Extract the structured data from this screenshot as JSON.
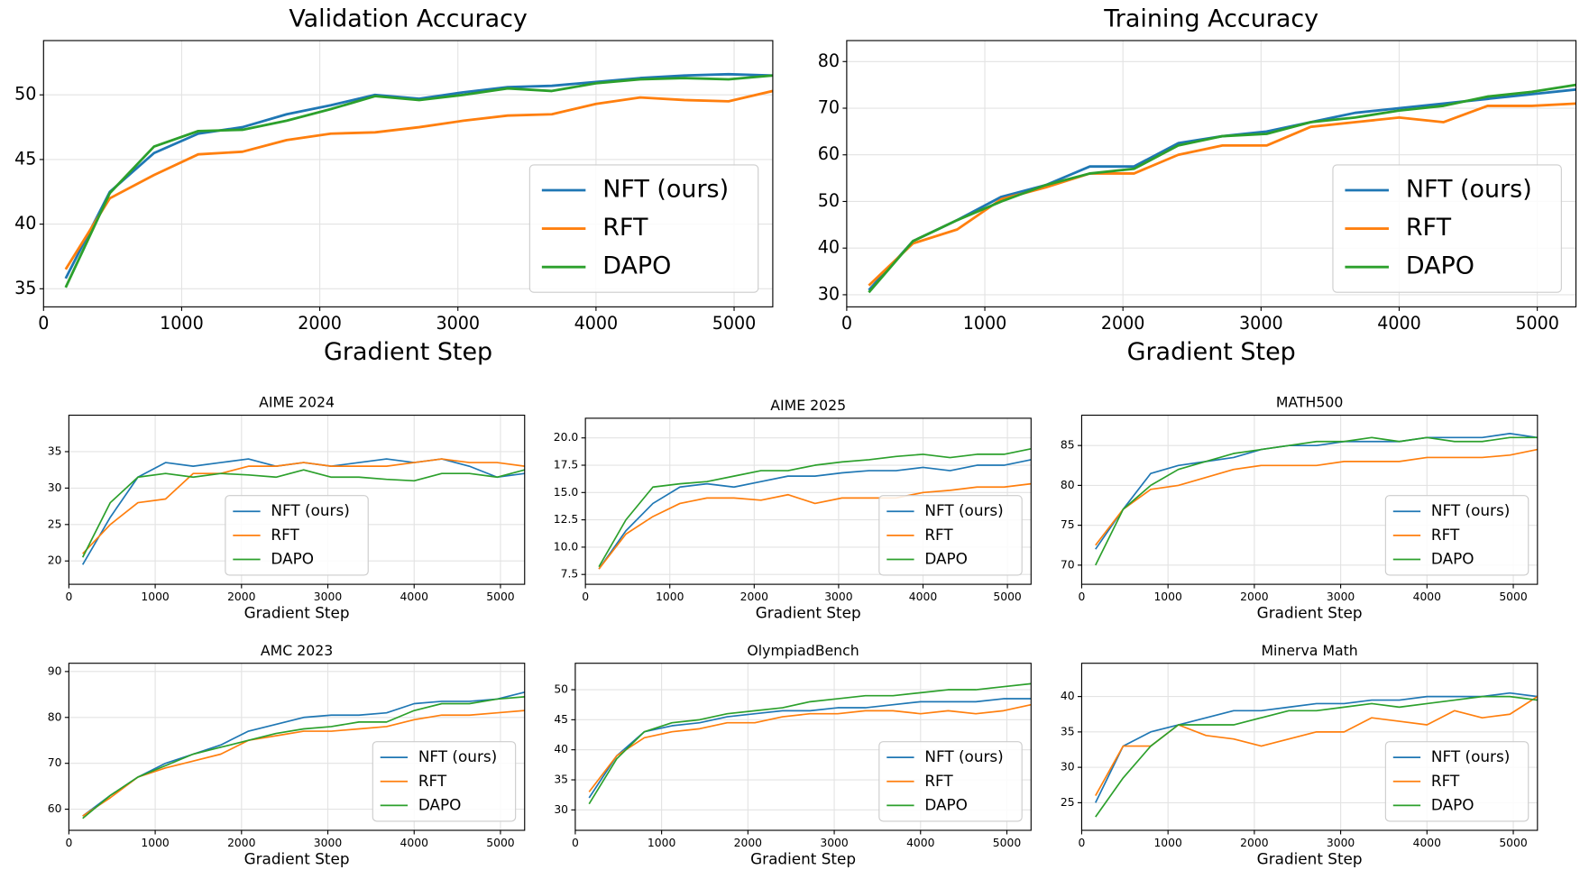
{
  "chart_data": [
    {
      "type": "line",
      "title": "Validation Accuracy",
      "xlabel": "Gradient Step",
      "x": [
        160,
        480,
        800,
        1120,
        1440,
        1760,
        2080,
        2400,
        2720,
        3040,
        3360,
        3680,
        4000,
        4320,
        4640,
        4960,
        5280
      ],
      "xlim": [
        0,
        5280
      ],
      "xticks": [
        0,
        1000,
        2000,
        3000,
        4000,
        5000
      ],
      "ylim": [
        33.6,
        54.2
      ],
      "yticks": [
        35,
        40,
        45,
        50
      ],
      "grid": true,
      "legend_loc": "lower right",
      "series": [
        {
          "name": "NFT (ours)",
          "color": "#1f77b4",
          "values": [
            35.8,
            42.5,
            45.5,
            47,
            47.5,
            48.5,
            49.2,
            50,
            49.7,
            50.2,
            50.6,
            50.7,
            51,
            51.3,
            51.5,
            51.6,
            51.5
          ]
        },
        {
          "name": "RFT",
          "color": "#ff7f0e",
          "values": [
            36.5,
            42,
            43.8,
            45.4,
            45.6,
            46.5,
            47,
            47.1,
            47.5,
            48,
            48.4,
            48.5,
            49.3,
            49.8,
            49.6,
            49.5,
            50.3
          ]
        },
        {
          "name": "DAPO",
          "color": "#2ca02c",
          "values": [
            35.1,
            42.4,
            46,
            47.2,
            47.3,
            48,
            48.9,
            49.9,
            49.6,
            50,
            50.5,
            50.3,
            50.9,
            51.2,
            51.3,
            51.2,
            51.5
          ]
        }
      ]
    },
    {
      "type": "line",
      "title": "Training Accuracy",
      "xlabel": "Gradient Step",
      "x": [
        160,
        480,
        800,
        1120,
        1440,
        1760,
        2080,
        2400,
        2720,
        3040,
        3360,
        3680,
        4000,
        4320,
        4640,
        4960,
        5280
      ],
      "xlim": [
        0,
        5280
      ],
      "xticks": [
        0,
        1000,
        2000,
        3000,
        4000,
        5000
      ],
      "ylim": [
        27.4,
        84.5
      ],
      "yticks": [
        30,
        40,
        50,
        60,
        70,
        80
      ],
      "grid": true,
      "legend_loc": "lower right",
      "series": [
        {
          "name": "NFT (ours)",
          "color": "#1f77b4",
          "values": [
            31,
            41.5,
            46,
            51,
            53.5,
            57.5,
            57.5,
            62.5,
            64,
            65,
            67,
            69,
            70,
            71,
            72,
            73,
            74
          ]
        },
        {
          "name": "RFT",
          "color": "#ff7f0e",
          "values": [
            32,
            41,
            44,
            50.5,
            53,
            56,
            56,
            60,
            62,
            62,
            66,
            67,
            68,
            67,
            70.5,
            70.5,
            71
          ]
        },
        {
          "name": "DAPO",
          "color": "#2ca02c",
          "values": [
            30.5,
            41.5,
            46,
            50,
            53.5,
            56,
            57,
            62,
            64,
            64.5,
            67,
            68,
            69.5,
            70.5,
            72.5,
            73.5,
            75
          ]
        }
      ]
    },
    {
      "type": "line",
      "title": "AIME 2024",
      "xlabel": "Gradient Step",
      "x": [
        160,
        480,
        800,
        1120,
        1440,
        1760,
        2080,
        2400,
        2720,
        3040,
        3360,
        3680,
        4000,
        4320,
        4640,
        4960,
        5280
      ],
      "xlim": [
        0,
        5280
      ],
      "xticks": [
        0,
        1000,
        2000,
        3000,
        4000,
        5000
      ],
      "ylim": [
        16.8,
        40
      ],
      "yticks": [
        20,
        25,
        30,
        35
      ],
      "grid": true,
      "legend_loc": "lower center",
      "series": [
        {
          "name": "NFT (ours)",
          "color": "#1f77b4",
          "values": [
            19.5,
            26,
            31.5,
            33.5,
            33,
            33.5,
            34,
            33,
            33.5,
            33,
            33.5,
            34,
            33.5,
            34,
            33,
            31.5,
            32
          ]
        },
        {
          "name": "RFT",
          "color": "#ff7f0e",
          "values": [
            21,
            25,
            28,
            28.5,
            32,
            32,
            33,
            33,
            33.5,
            33,
            33,
            33,
            33.5,
            34,
            33.5,
            33.5,
            33
          ]
        },
        {
          "name": "DAPO",
          "color": "#2ca02c",
          "values": [
            20.5,
            28,
            31.5,
            32,
            31.5,
            32,
            31.8,
            31.5,
            32.5,
            31.5,
            31.5,
            31.2,
            31,
            32,
            32,
            31.5,
            32.5
          ]
        }
      ]
    },
    {
      "type": "line",
      "title": "AIME 2025",
      "xlabel": "Gradient Step",
      "x": [
        160,
        480,
        800,
        1120,
        1440,
        1760,
        2080,
        2400,
        2720,
        3040,
        3360,
        3680,
        4000,
        4320,
        4640,
        4960,
        5280
      ],
      "xlim": [
        0,
        5280
      ],
      "xticks": [
        0,
        1000,
        2000,
        3000,
        4000,
        5000
      ],
      "ylim": [
        6.6,
        21.8
      ],
      "yticks": [
        7.5,
        {
          "value": 10,
          "label": "10.0"
        },
        12.5,
        {
          "value": 15,
          "label": "15.0"
        },
        17.5,
        {
          "value": 20,
          "label": "20.0"
        }
      ],
      "grid": true,
      "legend_loc": "lower right",
      "series": [
        {
          "name": "NFT (ours)",
          "color": "#1f77b4",
          "values": [
            8,
            11.5,
            14,
            15.5,
            15.8,
            15.5,
            16,
            16.5,
            16.5,
            16.8,
            17,
            17,
            17.3,
            17,
            17.5,
            17.5,
            18
          ]
        },
        {
          "name": "RFT",
          "color": "#ff7f0e",
          "values": [
            8,
            11.2,
            12.8,
            14,
            14.5,
            14.5,
            14.3,
            14.8,
            14,
            14.5,
            14.5,
            14.5,
            15,
            15.2,
            15.5,
            15.5,
            15.8
          ]
        },
        {
          "name": "DAPO",
          "color": "#2ca02c",
          "values": [
            8.2,
            12.5,
            15.5,
            15.8,
            16,
            16.5,
            17,
            17,
            17.5,
            17.8,
            18,
            18.3,
            18.5,
            18.2,
            18.5,
            18.5,
            19
          ]
        }
      ]
    },
    {
      "type": "line",
      "title": "MATH500",
      "xlabel": "Gradient Step",
      "x": [
        160,
        480,
        800,
        1120,
        1440,
        1760,
        2080,
        2400,
        2720,
        3040,
        3360,
        3680,
        4000,
        4320,
        4640,
        4960,
        5280
      ],
      "xlim": [
        0,
        5280
      ],
      "xticks": [
        0,
        1000,
        2000,
        3000,
        4000,
        5000
      ],
      "ylim": [
        67.6,
        88.8
      ],
      "yticks": [
        70,
        75,
        80,
        85
      ],
      "grid": true,
      "legend_loc": "lower right",
      "series": [
        {
          "name": "NFT (ours)",
          "color": "#1f77b4",
          "values": [
            72,
            77,
            81.5,
            82.5,
            83,
            83.5,
            84.5,
            85,
            85,
            85.5,
            85.5,
            85.5,
            86,
            86,
            86,
            86.5,
            86
          ]
        },
        {
          "name": "RFT",
          "color": "#ff7f0e",
          "values": [
            72.5,
            77,
            79.5,
            80,
            81,
            82,
            82.5,
            82.5,
            82.5,
            83,
            83,
            83,
            83.5,
            83.5,
            83.5,
            83.8,
            84.5
          ]
        },
        {
          "name": "DAPO",
          "color": "#2ca02c",
          "values": [
            70,
            77,
            80,
            82,
            83,
            84,
            84.5,
            85,
            85.5,
            85.5,
            86,
            85.5,
            86,
            85.5,
            85.5,
            86,
            86
          ]
        }
      ]
    },
    {
      "type": "line",
      "title": "AMC 2023",
      "xlabel": "Gradient Step",
      "x": [
        160,
        480,
        800,
        1120,
        1440,
        1760,
        2080,
        2400,
        2720,
        3040,
        3360,
        3680,
        4000,
        4320,
        4640,
        4960,
        5280
      ],
      "xlim": [
        0,
        5280
      ],
      "xticks": [
        0,
        1000,
        2000,
        3000,
        4000,
        5000
      ],
      "ylim": [
        55.4,
        91.8
      ],
      "yticks": [
        60,
        70,
        80,
        90
      ],
      "grid": true,
      "legend_loc": "lower right",
      "series": [
        {
          "name": "NFT (ours)",
          "color": "#1f77b4",
          "values": [
            58.5,
            63,
            67,
            70,
            72,
            74,
            77,
            78.5,
            80,
            80.5,
            80.5,
            81,
            83,
            83.5,
            83.5,
            84,
            85.5
          ]
        },
        {
          "name": "RFT",
          "color": "#ff7f0e",
          "values": [
            58.5,
            62.5,
            67,
            69,
            70.5,
            72,
            75,
            76,
            77,
            77,
            77.5,
            78,
            79.5,
            80.5,
            80.5,
            81,
            81.5
          ]
        },
        {
          "name": "DAPO",
          "color": "#2ca02c",
          "values": [
            58,
            63,
            67,
            69.5,
            72,
            73.5,
            75,
            76.5,
            77.5,
            78,
            79,
            79,
            81.5,
            83,
            83,
            84,
            84.5
          ]
        }
      ]
    },
    {
      "type": "line",
      "title": "OlympiadBench",
      "xlabel": "Gradient Step",
      "x": [
        160,
        480,
        800,
        1120,
        1440,
        1760,
        2080,
        2400,
        2720,
        3040,
        3360,
        3680,
        4000,
        4320,
        4640,
        4960,
        5280
      ],
      "xlim": [
        0,
        5280
      ],
      "xticks": [
        0,
        1000,
        2000,
        3000,
        4000,
        5000
      ],
      "ylim": [
        26.6,
        54.4
      ],
      "yticks": [
        30,
        35,
        40,
        45,
        50
      ],
      "grid": true,
      "legend_loc": "lower right",
      "series": [
        {
          "name": "NFT (ours)",
          "color": "#1f77b4",
          "values": [
            32,
            39,
            43,
            44,
            44.5,
            45.5,
            46,
            46.5,
            46.5,
            47,
            47,
            47.5,
            48,
            48,
            48,
            48.5,
            48.5
          ]
        },
        {
          "name": "RFT",
          "color": "#ff7f0e",
          "values": [
            33,
            39,
            42,
            43,
            43.5,
            44.5,
            44.5,
            45.5,
            46,
            46,
            46.5,
            46.5,
            46,
            46.5,
            46,
            46.5,
            47.5
          ]
        },
        {
          "name": "DAPO",
          "color": "#2ca02c",
          "values": [
            31,
            38.5,
            43,
            44.5,
            45,
            46,
            46.5,
            47,
            48,
            48.5,
            49,
            49,
            49.5,
            50,
            50,
            50.5,
            51
          ]
        }
      ]
    },
    {
      "type": "line",
      "title": "Minerva Math",
      "xlabel": "Gradient Step",
      "x": [
        160,
        480,
        800,
        1120,
        1440,
        1760,
        2080,
        2400,
        2720,
        3040,
        3360,
        3680,
        4000,
        4320,
        4640,
        4960,
        5280
      ],
      "xlim": [
        0,
        5280
      ],
      "xticks": [
        0,
        1000,
        2000,
        3000,
        4000,
        5000
      ],
      "ylim": [
        21.1,
        44.7
      ],
      "yticks": [
        25,
        30,
        35,
        40
      ],
      "grid": true,
      "legend_loc": "lower right",
      "series": [
        {
          "name": "NFT (ours)",
          "color": "#1f77b4",
          "values": [
            25,
            33,
            35,
            36,
            37,
            38,
            38,
            38.5,
            39,
            39,
            39.5,
            39.5,
            40,
            40,
            40,
            40.5,
            40
          ]
        },
        {
          "name": "RFT",
          "color": "#ff7f0e",
          "values": [
            26,
            33,
            33,
            36,
            34.5,
            34,
            33,
            34,
            35,
            35,
            37,
            36.5,
            36,
            38,
            37,
            37.5,
            40
          ]
        },
        {
          "name": "DAPO",
          "color": "#2ca02c",
          "values": [
            23,
            28.5,
            33,
            36,
            36,
            36,
            37,
            38,
            38,
            38.5,
            39,
            38.5,
            39,
            39.5,
            40,
            40,
            39.5
          ]
        }
      ]
    }
  ]
}
